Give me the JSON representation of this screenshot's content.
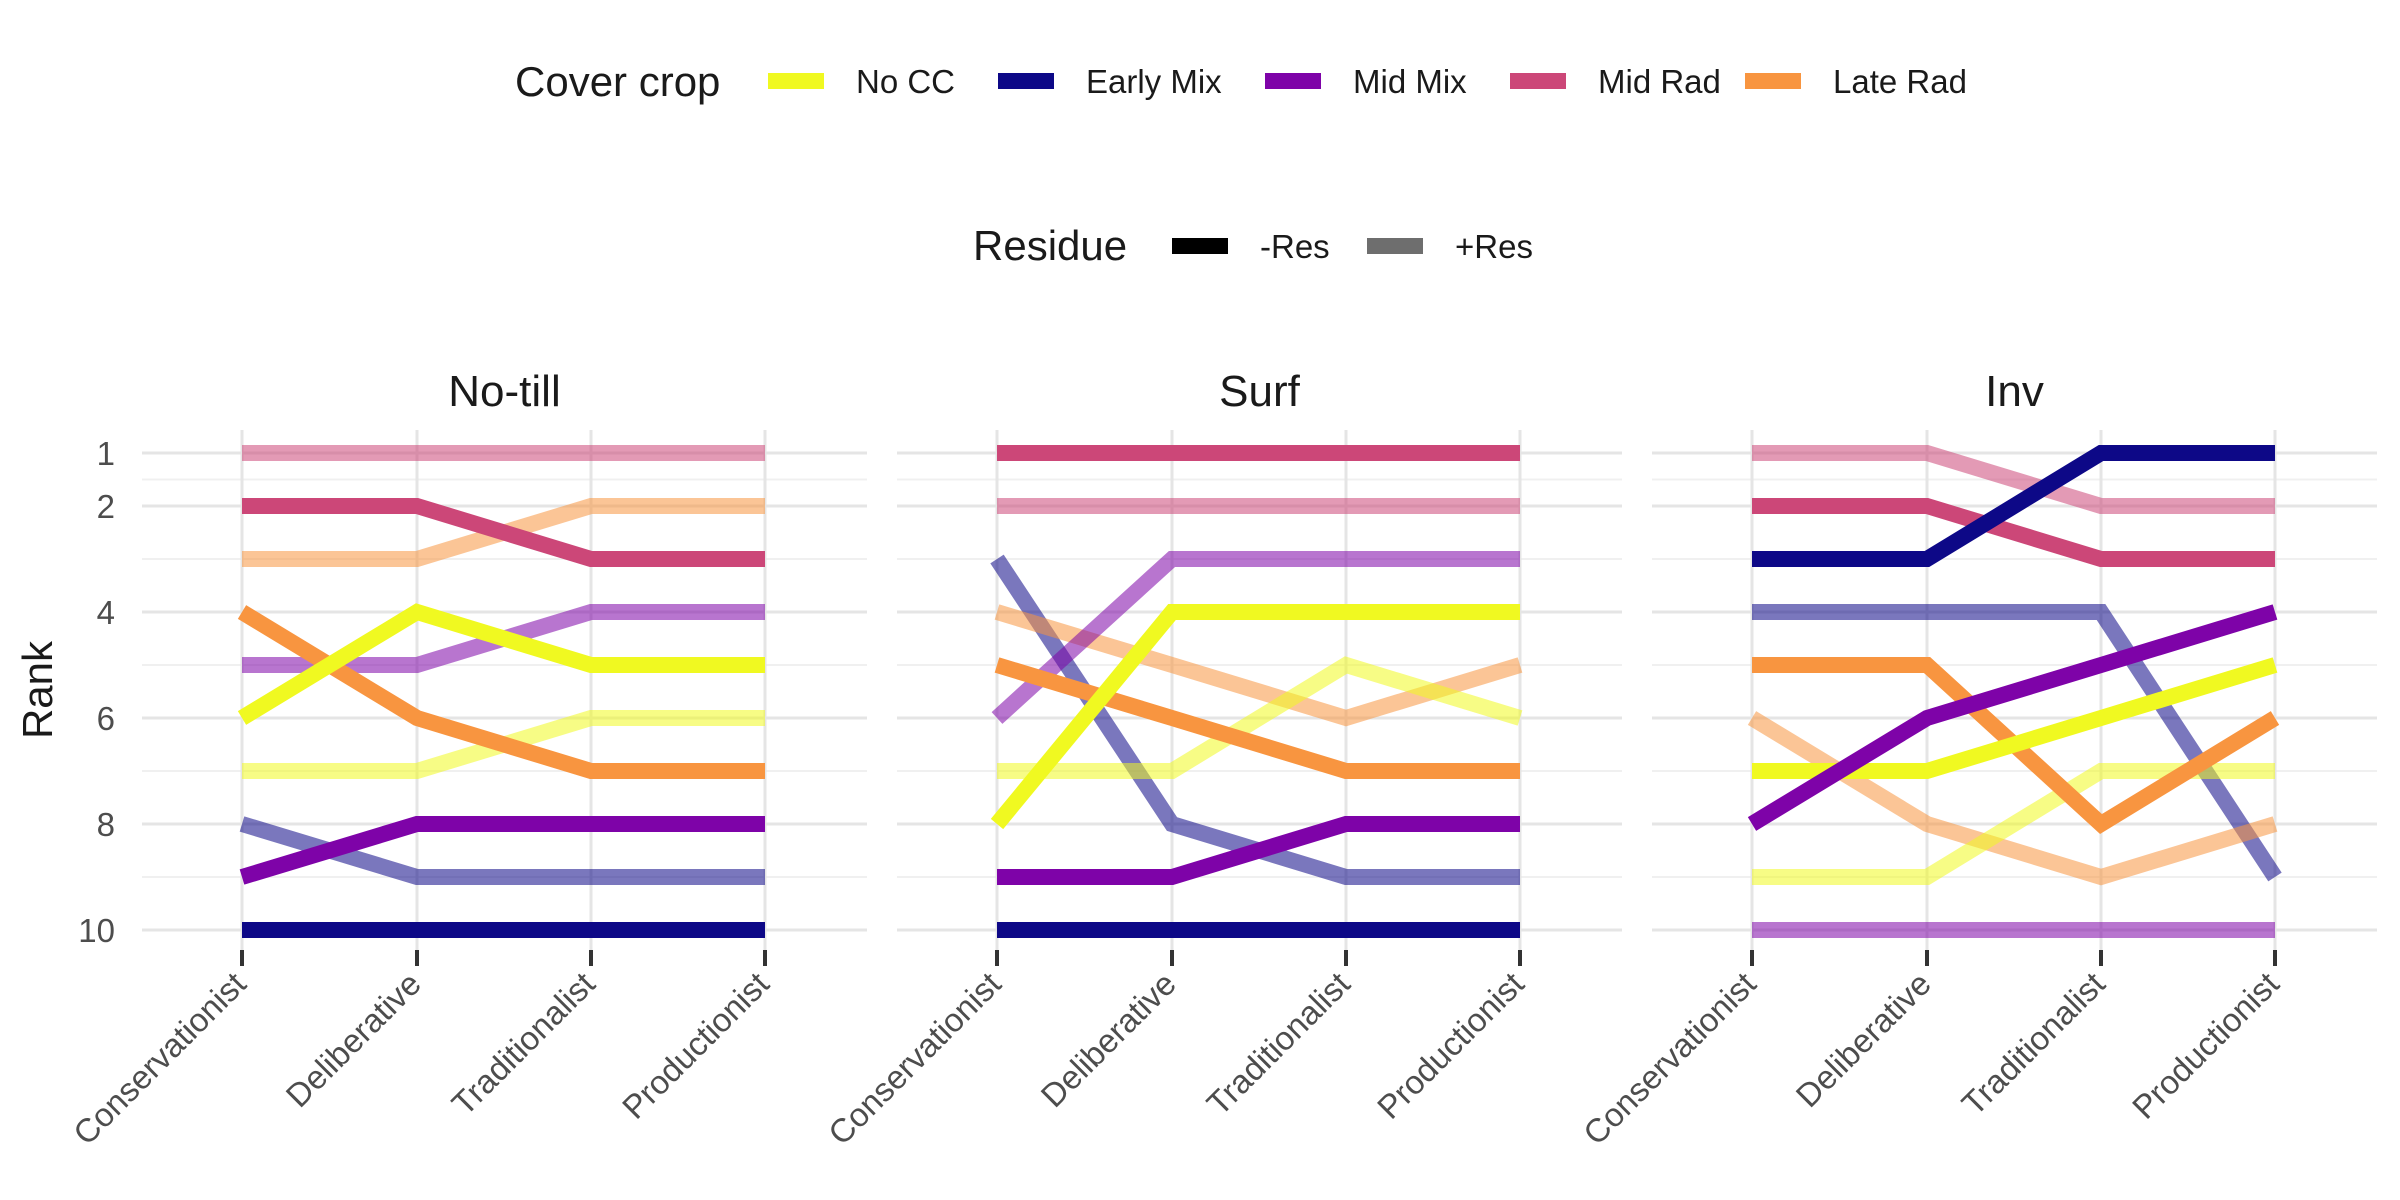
{
  "colors": {
    "No CC": "#F0F921",
    "Early Mix": "#0D0887",
    "Mid Mix": "#7E03A8",
    "Mid Rad": "#CC4778",
    "Late Rad": "#F89540",
    "-Res": "#000000",
    "+Res": "#6E6E6E"
  },
  "legend": {
    "cover_crop_title": "Cover crop",
    "cover_crops": [
      "No CC",
      "Early Mix",
      "Mid Mix",
      "Mid Rad",
      "Late Rad"
    ],
    "residue_title": "Residue",
    "residues": [
      "-Res",
      "+Res"
    ]
  },
  "chart_data": {
    "type": "line",
    "ylabel": "Rank",
    "y_ticks": [
      1,
      2,
      4,
      6,
      8,
      10
    ],
    "ylim": [
      1,
      10
    ],
    "y_reversed": true,
    "grid": true,
    "legend_position": "top",
    "x": [
      "Conservationist",
      "Deliberative",
      "Traditionalist",
      "Productionist"
    ],
    "panels": [
      {
        "title": "No-till",
        "series": [
          {
            "cover_crop": "Mid Rad",
            "residue": "+Res",
            "values": [
              1,
              1,
              1,
              1
            ]
          },
          {
            "cover_crop": "Mid Rad",
            "residue": "-Res",
            "values": [
              2,
              2,
              3,
              3
            ]
          },
          {
            "cover_crop": "Late Rad",
            "residue": "+Res",
            "values": [
              3,
              3,
              2,
              2
            ]
          },
          {
            "cover_crop": "Late Rad",
            "residue": "-Res",
            "values": [
              4,
              6,
              7,
              7
            ]
          },
          {
            "cover_crop": "Mid Mix",
            "residue": "+Res",
            "values": [
              5,
              5,
              4,
              4
            ]
          },
          {
            "cover_crop": "No CC",
            "residue": "-Res",
            "values": [
              6,
              4,
              5,
              5
            ]
          },
          {
            "cover_crop": "No CC",
            "residue": "+Res",
            "values": [
              7,
              7,
              6,
              6
            ]
          },
          {
            "cover_crop": "Early Mix",
            "residue": "+Res",
            "values": [
              8,
              9,
              9,
              9
            ]
          },
          {
            "cover_crop": "Mid Mix",
            "residue": "-Res",
            "values": [
              9,
              8,
              8,
              8
            ]
          },
          {
            "cover_crop": "Early Mix",
            "residue": "-Res",
            "values": [
              10,
              10,
              10,
              10
            ]
          }
        ]
      },
      {
        "title": "Surf",
        "series": [
          {
            "cover_crop": "Mid Rad",
            "residue": "-Res",
            "values": [
              1,
              1,
              1,
              1
            ]
          },
          {
            "cover_crop": "Mid Rad",
            "residue": "+Res",
            "values": [
              2,
              2,
              2,
              2
            ]
          },
          {
            "cover_crop": "Early Mix",
            "residue": "+Res",
            "values": [
              3,
              8,
              9,
              9
            ]
          },
          {
            "cover_crop": "Late Rad",
            "residue": "+Res",
            "values": [
              4,
              5,
              6,
              5
            ]
          },
          {
            "cover_crop": "Late Rad",
            "residue": "-Res",
            "values": [
              5,
              6,
              7,
              7
            ]
          },
          {
            "cover_crop": "Mid Mix",
            "residue": "+Res",
            "values": [
              6,
              3,
              3,
              3
            ]
          },
          {
            "cover_crop": "No CC",
            "residue": "+Res",
            "values": [
              7,
              7,
              5,
              6
            ]
          },
          {
            "cover_crop": "No CC",
            "residue": "-Res",
            "values": [
              8,
              4,
              4,
              4
            ]
          },
          {
            "cover_crop": "Mid Mix",
            "residue": "-Res",
            "values": [
              9,
              9,
              8,
              8
            ]
          },
          {
            "cover_crop": "Early Mix",
            "residue": "-Res",
            "values": [
              10,
              10,
              10,
              10
            ]
          }
        ]
      },
      {
        "title": "Inv",
        "series": [
          {
            "cover_crop": "Mid Rad",
            "residue": "+Res",
            "values": [
              1,
              1,
              2,
              2
            ]
          },
          {
            "cover_crop": "Mid Rad",
            "residue": "-Res",
            "values": [
              2,
              2,
              3,
              3
            ]
          },
          {
            "cover_crop": "Early Mix",
            "residue": "-Res",
            "values": [
              3,
              3,
              1,
              1
            ]
          },
          {
            "cover_crop": "Early Mix",
            "residue": "+Res",
            "values": [
              4,
              4,
              4,
              9
            ]
          },
          {
            "cover_crop": "Late Rad",
            "residue": "-Res",
            "values": [
              5,
              5,
              8,
              6
            ]
          },
          {
            "cover_crop": "Late Rad",
            "residue": "+Res",
            "values": [
              6,
              8,
              9,
              8
            ]
          },
          {
            "cover_crop": "No CC",
            "residue": "-Res",
            "values": [
              7,
              7,
              6,
              5
            ]
          },
          {
            "cover_crop": "Mid Mix",
            "residue": "-Res",
            "values": [
              8,
              6,
              5,
              4
            ]
          },
          {
            "cover_crop": "No CC",
            "residue": "+Res",
            "values": [
              9,
              9,
              7,
              7
            ]
          },
          {
            "cover_crop": "Mid Mix",
            "residue": "+Res",
            "values": [
              10,
              10,
              10,
              10
            ]
          }
        ]
      }
    ]
  }
}
